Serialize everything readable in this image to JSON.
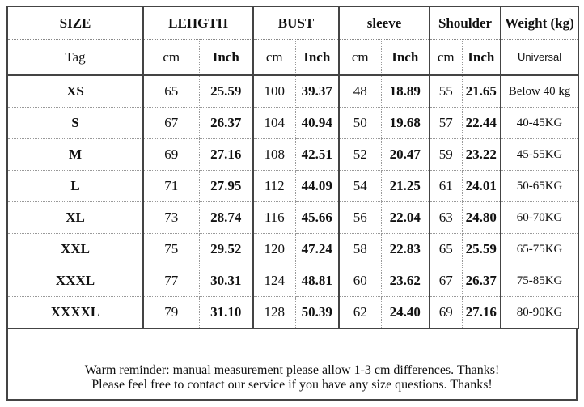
{
  "header": {
    "size": "SIZE",
    "length": "LEHGTH",
    "bust": "BUST",
    "sleeve": "sleeve",
    "shoulder": "Shoulder",
    "weight": "Weight (kg)"
  },
  "subheader": {
    "tag": "Tag",
    "cm": "cm",
    "inch": "Inch",
    "universal": "Universal"
  },
  "rows": [
    {
      "size": "XS",
      "len_cm": "65",
      "len_in": "25.59",
      "bust_cm": "100",
      "bust_in": "39.37",
      "sleeve_cm": "48",
      "sleeve_in": "18.89",
      "sh_cm": "55",
      "sh_in": "21.65",
      "weight": "Below 40 kg"
    },
    {
      "size": "S",
      "len_cm": "67",
      "len_in": "26.37",
      "bust_cm": "104",
      "bust_in": "40.94",
      "sleeve_cm": "50",
      "sleeve_in": "19.68",
      "sh_cm": "57",
      "sh_in": "22.44",
      "weight": "40-45KG"
    },
    {
      "size": "M",
      "len_cm": "69",
      "len_in": "27.16",
      "bust_cm": "108",
      "bust_in": "42.51",
      "sleeve_cm": "52",
      "sleeve_in": "20.47",
      "sh_cm": "59",
      "sh_in": "23.22",
      "weight": "45-55KG"
    },
    {
      "size": "L",
      "len_cm": "71",
      "len_in": "27.95",
      "bust_cm": "112",
      "bust_in": "44.09",
      "sleeve_cm": "54",
      "sleeve_in": "21.25",
      "sh_cm": "61",
      "sh_in": "24.01",
      "weight": "50-65KG"
    },
    {
      "size": "XL",
      "len_cm": "73",
      "len_in": "28.74",
      "bust_cm": "116",
      "bust_in": "45.66",
      "sleeve_cm": "56",
      "sleeve_in": "22.04",
      "sh_cm": "63",
      "sh_in": "24.80",
      "weight": "60-70KG"
    },
    {
      "size": "XXL",
      "len_cm": "75",
      "len_in": "29.52",
      "bust_cm": "120",
      "bust_in": "47.24",
      "sleeve_cm": "58",
      "sleeve_in": "22.83",
      "sh_cm": "65",
      "sh_in": "25.59",
      "weight": "65-75KG"
    },
    {
      "size": "XXXL",
      "len_cm": "77",
      "len_in": "30.31",
      "bust_cm": "124",
      "bust_in": "48.81",
      "sleeve_cm": "60",
      "sleeve_in": "23.62",
      "sh_cm": "67",
      "sh_in": "26.37",
      "weight": "75-85KG"
    },
    {
      "size": "XXXXL",
      "len_cm": "79",
      "len_in": "31.10",
      "bust_cm": "128",
      "bust_in": "50.39",
      "sleeve_cm": "62",
      "sleeve_in": "24.40",
      "sh_cm": "69",
      "sh_in": "27.16",
      "weight": "80-90KG"
    }
  ],
  "footer": {
    "line1": "Warm reminder: manual measurement please allow 1-3 cm differences. Thanks!",
    "line2": "Please feel free to contact our service if you have any size questions. Thanks!"
  }
}
